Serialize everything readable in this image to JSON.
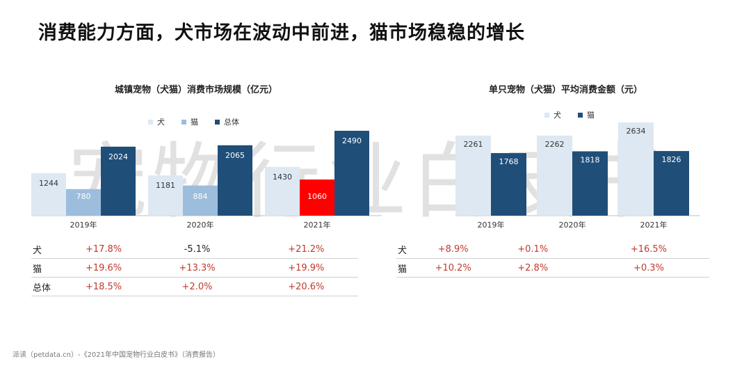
{
  "page": {
    "title": "消费能力方面，犬市场在波动中前进，猫市场稳稳的增长",
    "watermark": "宠物行业白皮书",
    "footer": "派读（petdata.cn）-《2021年中国宠物行业白皮书》（消费报告）"
  },
  "colors": {
    "dog": "#dde8f3",
    "cat": "#9dbddc",
    "total": "#1f4e79",
    "highlight": "#ff0000",
    "positive": "#c0392b"
  },
  "chart_data": [
    {
      "type": "bar",
      "title": "城镇宠物（犬猫）消费市场规模（亿元）",
      "categories": [
        "2019年",
        "2020年",
        "2021年"
      ],
      "series": [
        {
          "name": "犬",
          "values": [
            1244,
            1181,
            1430
          ]
        },
        {
          "name": "猫",
          "values": [
            780,
            884,
            1060
          ]
        },
        {
          "name": "总体",
          "values": [
            2024,
            2065,
            2490
          ]
        }
      ],
      "highlighted": {
        "series": "猫",
        "category": "2021年"
      },
      "legend_position": "top",
      "grid": false,
      "ylim": [
        0,
        2600
      ]
    },
    {
      "type": "bar",
      "title": "单只宠物（犬猫）平均消费金额（元）",
      "categories": [
        "2019年",
        "2020年",
        "2021年"
      ],
      "series": [
        {
          "name": "犬",
          "values": [
            2261,
            2262,
            2634
          ]
        },
        {
          "name": "猫",
          "values": [
            1768,
            1818,
            1826
          ]
        }
      ],
      "legend_position": "top",
      "grid": false,
      "ylim": [
        0,
        2800
      ]
    }
  ],
  "tables": {
    "left": {
      "rows": [
        {
          "label": "犬",
          "values": [
            "+17.8%",
            "-5.1%",
            "+21.2%"
          ]
        },
        {
          "label": "猫",
          "values": [
            "+19.6%",
            "+13.3%",
            "+19.9%"
          ]
        },
        {
          "label": "总体",
          "values": [
            "+18.5%",
            "+2.0%",
            "+20.6%"
          ]
        }
      ]
    },
    "right": {
      "rows": [
        {
          "label": "犬",
          "values": [
            "+8.9%",
            "+0.1%",
            "+16.5%"
          ]
        },
        {
          "label": "猫",
          "values": [
            "+10.2%",
            "+2.8%",
            "+0.3%"
          ]
        }
      ]
    }
  }
}
